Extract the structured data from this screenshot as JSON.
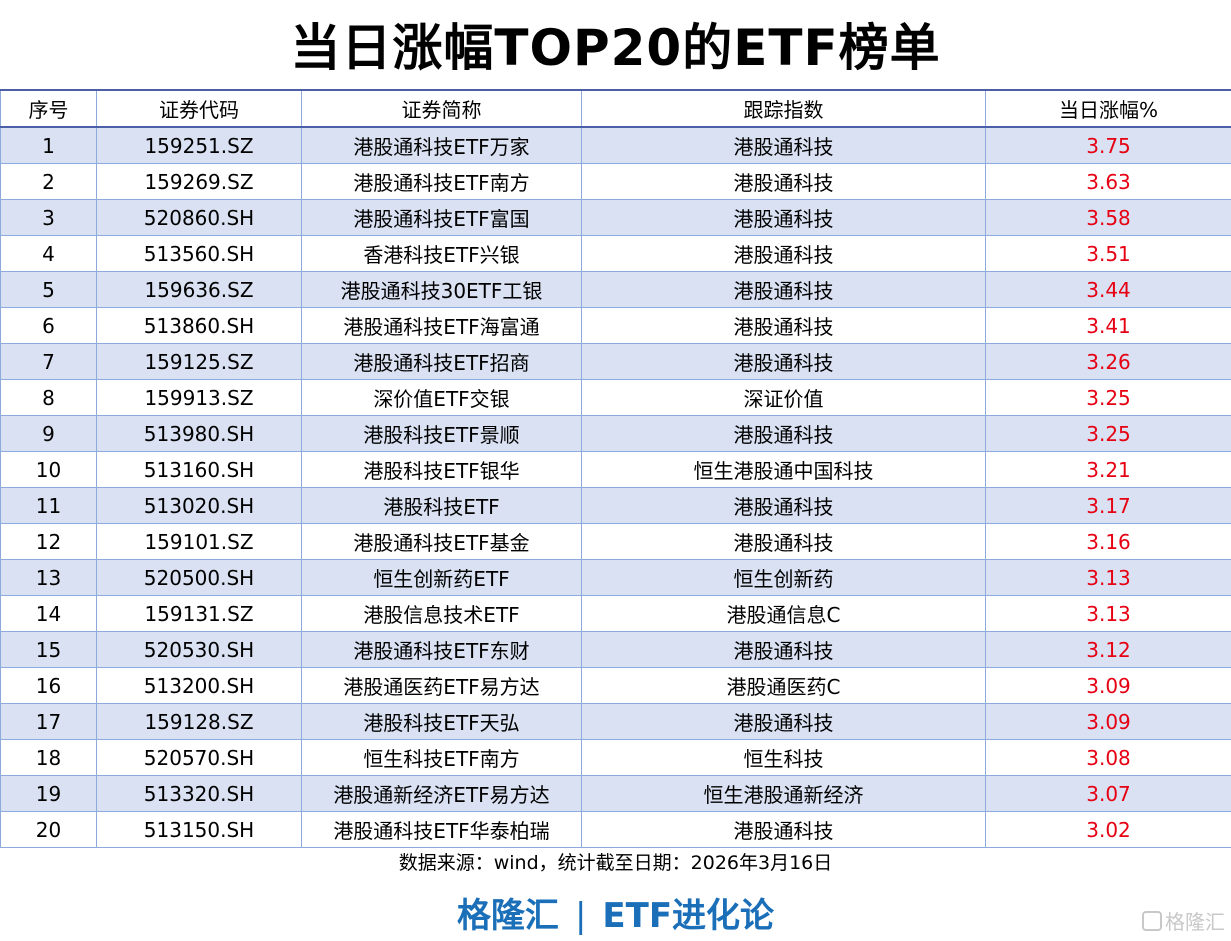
{
  "title": "当日涨幅TOP20的ETF榜单",
  "table": {
    "headers": [
      "序号",
      "证券代码",
      "证券简称",
      "跟踪指数",
      "当日涨幅%"
    ],
    "rows": [
      {
        "rank": "1",
        "code": "159251.SZ",
        "name": "港股通科技ETF万家",
        "index": "港股通科技",
        "change": "3.75"
      },
      {
        "rank": "2",
        "code": "159269.SZ",
        "name": "港股通科技ETF南方",
        "index": "港股通科技",
        "change": "3.63"
      },
      {
        "rank": "3",
        "code": "520860.SH",
        "name": "港股通科技ETF富国",
        "index": "港股通科技",
        "change": "3.58"
      },
      {
        "rank": "4",
        "code": "513560.SH",
        "name": "香港科技ETF兴银",
        "index": "港股通科技",
        "change": "3.51"
      },
      {
        "rank": "5",
        "code": "159636.SZ",
        "name": "港股通科技30ETF工银",
        "index": "港股通科技",
        "change": "3.44"
      },
      {
        "rank": "6",
        "code": "513860.SH",
        "name": "港股通科技ETF海富通",
        "index": "港股通科技",
        "change": "3.41"
      },
      {
        "rank": "7",
        "code": "159125.SZ",
        "name": "港股通科技ETF招商",
        "index": "港股通科技",
        "change": "3.26"
      },
      {
        "rank": "8",
        "code": "159913.SZ",
        "name": "深价值ETF交银",
        "index": "深证价值",
        "change": "3.25"
      },
      {
        "rank": "9",
        "code": "513980.SH",
        "name": "港股科技ETF景顺",
        "index": "港股通科技",
        "change": "3.25"
      },
      {
        "rank": "10",
        "code": "513160.SH",
        "name": "港股科技ETF银华",
        "index": "恒生港股通中国科技",
        "change": "3.21"
      },
      {
        "rank": "11",
        "code": "513020.SH",
        "name": "港股科技ETF",
        "index": "港股通科技",
        "change": "3.17"
      },
      {
        "rank": "12",
        "code": "159101.SZ",
        "name": "港股通科技ETF基金",
        "index": "港股通科技",
        "change": "3.16"
      },
      {
        "rank": "13",
        "code": "520500.SH",
        "name": "恒生创新药ETF",
        "index": "恒生创新药",
        "change": "3.13"
      },
      {
        "rank": "14",
        "code": "159131.SZ",
        "name": "港股信息技术ETF",
        "index": "港股通信息C",
        "change": "3.13"
      },
      {
        "rank": "15",
        "code": "520530.SH",
        "name": "港股通科技ETF东财",
        "index": "港股通科技",
        "change": "3.12"
      },
      {
        "rank": "16",
        "code": "513200.SH",
        "name": "港股通医药ETF易方达",
        "index": "港股通医药C",
        "change": "3.09"
      },
      {
        "rank": "17",
        "code": "159128.SZ",
        "name": "港股科技ETF天弘",
        "index": "港股通科技",
        "change": "3.09"
      },
      {
        "rank": "18",
        "code": "520570.SH",
        "name": "恒生科技ETF南方",
        "index": "恒生科技",
        "change": "3.08"
      },
      {
        "rank": "19",
        "code": "513320.SH",
        "name": "港股通新经济ETF易方达",
        "index": "恒生港股通新经济",
        "change": "3.07"
      },
      {
        "rank": "20",
        "code": "513150.SH",
        "name": "港股通科技ETF华泰柏瑞",
        "index": "港股通科技",
        "change": "3.02"
      }
    ]
  },
  "footer": {
    "source": "数据来源：wind，统计截至日期：2026年3月16日",
    "brand_left": "格隆汇",
    "brand_sep": "|",
    "brand_right": "ETF进化论",
    "watermark": "格隆汇"
  },
  "colors": {
    "change_text": "#e60012",
    "row_stripe": "#d9e1f2",
    "brand": "#1a6fb8",
    "border": "#8ea9db"
  }
}
